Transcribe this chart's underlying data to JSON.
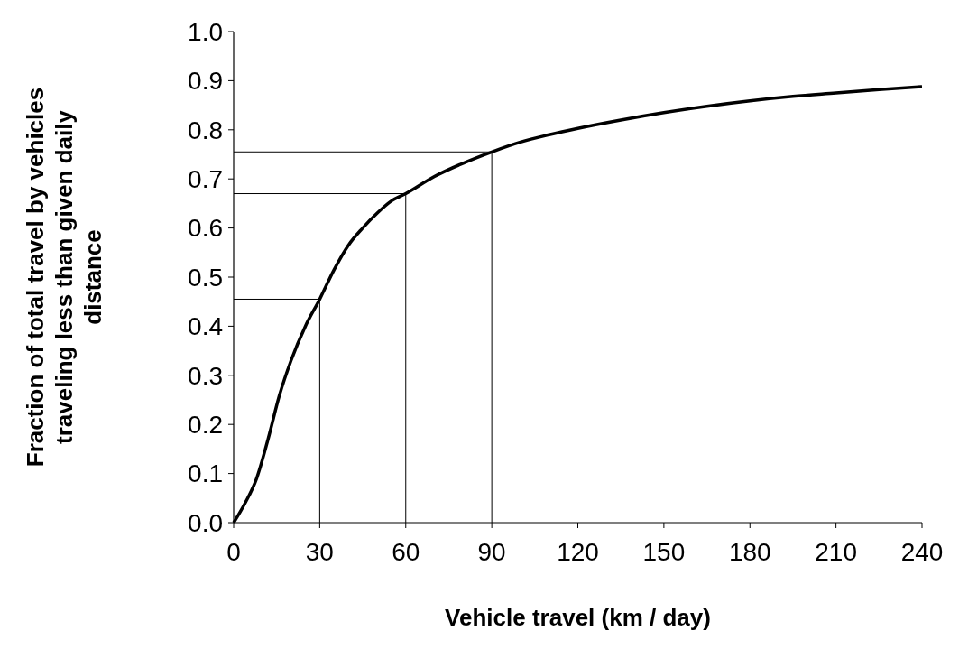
{
  "chart_data": {
    "type": "line",
    "xlabel": "Vehicle travel (km / day)",
    "ylabel": "Fraction of total travel by vehicles traveling less than given daily distance",
    "x": [
      0,
      4,
      8,
      12,
      16,
      20,
      25,
      30,
      35,
      40,
      45,
      50,
      55,
      60,
      70,
      80,
      90,
      100,
      110,
      120,
      135,
      150,
      165,
      180,
      195,
      210,
      225,
      240
    ],
    "series": [
      {
        "color": "#000000",
        "values": [
          0,
          0.04,
          0.09,
          0.17,
          0.26,
          0.33,
          0.4,
          0.455,
          0.515,
          0.565,
          0.6,
          0.63,
          0.655,
          0.67,
          0.705,
          0.732,
          0.755,
          0.775,
          0.79,
          0.803,
          0.82,
          0.835,
          0.848,
          0.859,
          0.868,
          0.875,
          0.882,
          0.888
        ]
      }
    ],
    "xlim": [
      0,
      240
    ],
    "xticks": [
      0,
      30,
      60,
      90,
      120,
      150,
      180,
      210,
      240
    ],
    "ylim": [
      0,
      1
    ],
    "yticks": [
      {
        "value": 0,
        "label": "0.0"
      },
      {
        "value": 0.1,
        "label": "0.1"
      },
      {
        "value": 0.2,
        "label": "0.2"
      },
      {
        "value": 0.3,
        "label": "0.3"
      },
      {
        "value": 0.4,
        "label": "0.4"
      },
      {
        "value": 0.5,
        "label": "0.5"
      },
      {
        "value": 0.6,
        "label": "0.6"
      },
      {
        "value": 0.7,
        "label": "0.7"
      },
      {
        "value": 0.8,
        "label": "0.8"
      },
      {
        "value": 0.9,
        "label": "0.9"
      },
      {
        "value": 1,
        "label": "1.0"
      }
    ],
    "ref_lines": [
      {
        "axis": "x",
        "value": 30
      },
      {
        "axis": "x",
        "value": 60
      },
      {
        "axis": "x",
        "value": 90
      },
      {
        "axis": "y",
        "value": 0.455
      },
      {
        "axis": "y",
        "value": 0.67
      },
      {
        "axis": "y",
        "value": 0.755
      }
    ],
    "grid": false,
    "line_style": "solid"
  }
}
